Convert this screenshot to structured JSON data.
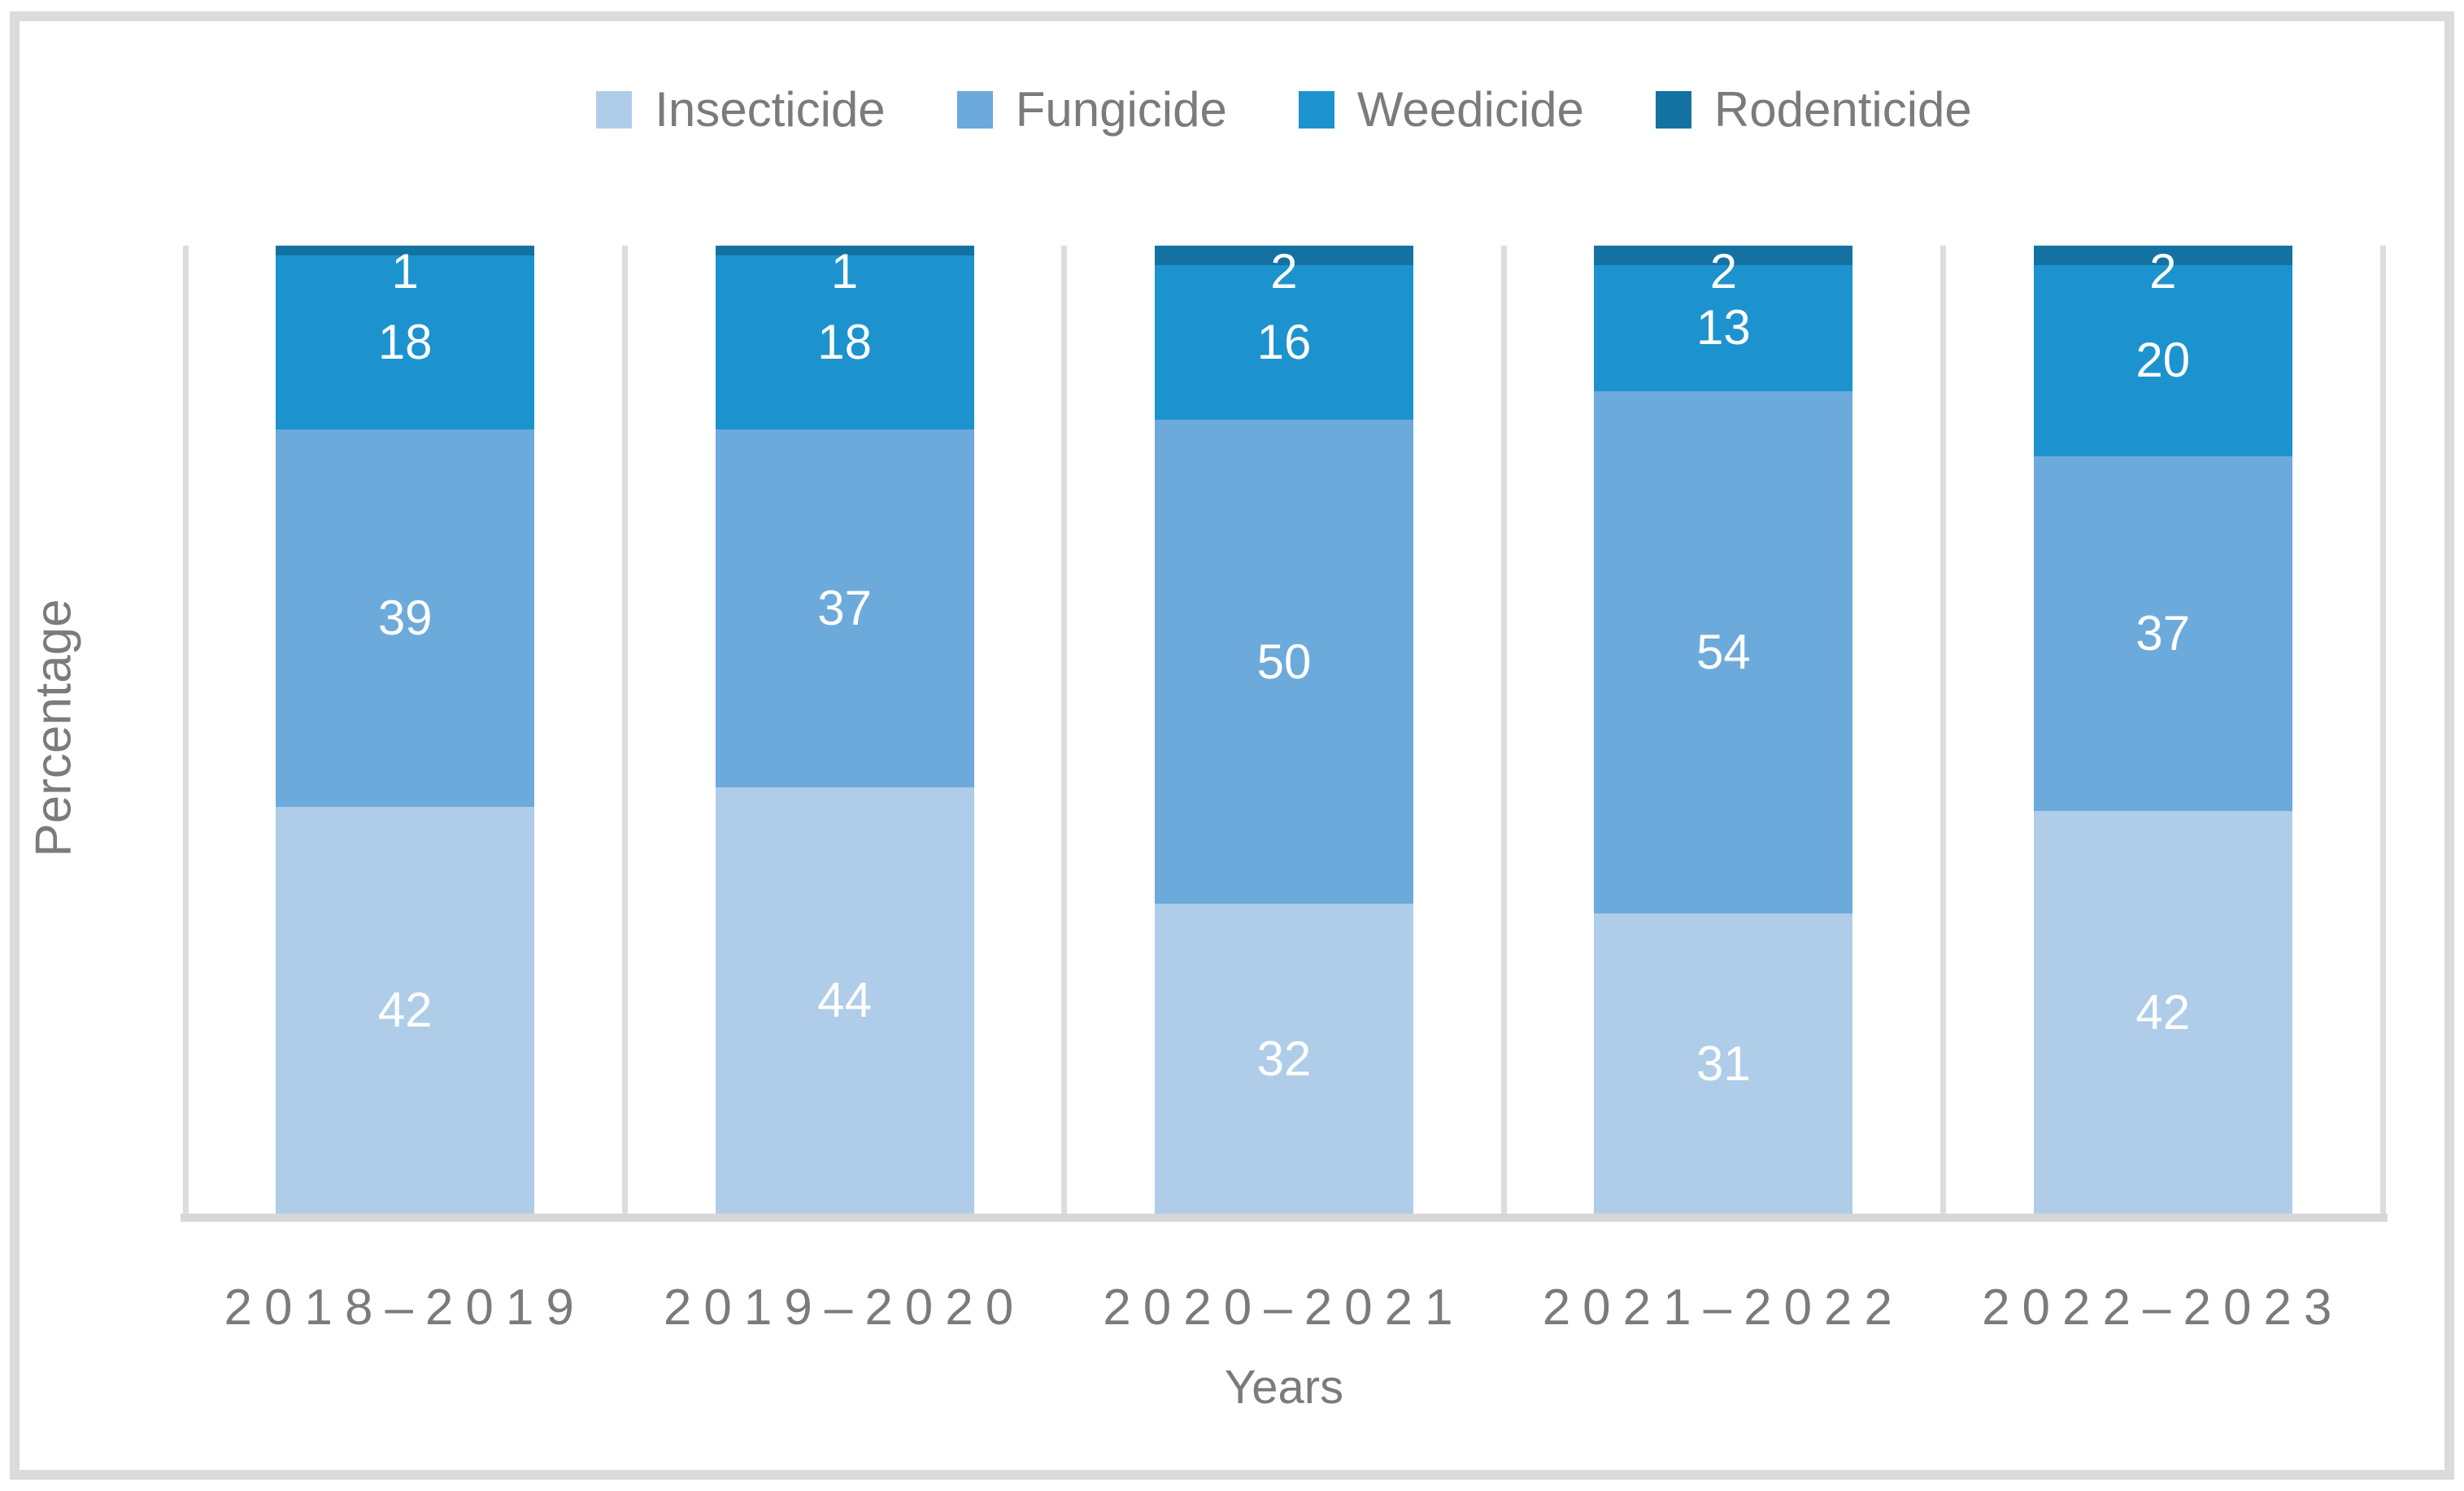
{
  "chart_data": {
    "type": "bar",
    "stacked": true,
    "percent_stacked": true,
    "title": "",
    "xlabel": "Years",
    "ylabel": "Percentage",
    "categories": [
      "2018–2019",
      "2019–2020",
      "2020–2021",
      "2021–2022",
      "2022–2023"
    ],
    "series": [
      {
        "name": "Insecticide",
        "color": "#AFCDE9",
        "values": [
          42,
          44,
          32,
          31,
          42
        ]
      },
      {
        "name": "Fungicide",
        "color": "#6CAADC",
        "values": [
          39,
          37,
          50,
          54,
          37
        ]
      },
      {
        "name": "Weedicide",
        "color": "#1C93CE",
        "values": [
          18,
          18,
          16,
          13,
          20
        ]
      },
      {
        "name": "Rodenticide",
        "color": "#1472A2",
        "values": [
          1,
          1,
          2,
          2,
          2
        ]
      }
    ],
    "legend_position": "top-center",
    "value_labels": "inside-center-white",
    "gridlines": "vertical category separators only",
    "ylim": [
      0,
      100
    ]
  },
  "colors": {
    "figure_border": "#DBDBDB",
    "gridline": "#DCDCDC",
    "baseline": "#D7D7D7",
    "axis_text": "#7B7B7B",
    "value_label_text": "#FFFFFF",
    "background": "#FFFFFF"
  }
}
